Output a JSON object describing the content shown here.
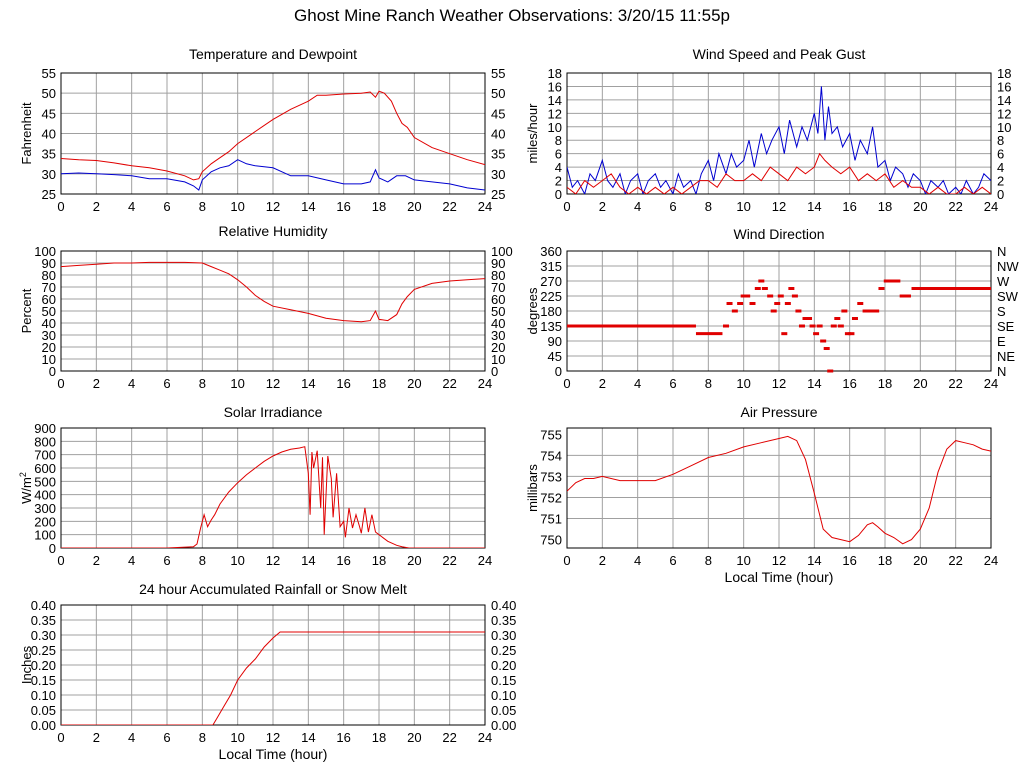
{
  "page_title": "Ghost Mine Ranch Weather Observations: 3/20/15 11:55p",
  "colors": {
    "red": "#e00000",
    "blue": "#0000d0",
    "grid": "#a0a0a0",
    "axis": "#000000"
  },
  "chart_data": [
    {
      "id": "temp",
      "type": "line",
      "title": "Temperature and Dewpoint",
      "ylabel": "Fahrenheit",
      "xlabel": "",
      "xlim": [
        0,
        24
      ],
      "ylim": [
        25,
        55
      ],
      "xticks": [
        0,
        2,
        4,
        6,
        8,
        10,
        12,
        14,
        16,
        18,
        20,
        22,
        24
      ],
      "yticks": [
        25,
        30,
        35,
        40,
        45,
        50,
        55
      ],
      "yticks_right": [
        "25",
        "30",
        "35",
        "40",
        "45",
        "50",
        "55"
      ],
      "series": [
        {
          "name": "Temperature",
          "color": "red",
          "x": [
            0,
            1,
            2,
            3,
            4,
            5,
            6,
            7,
            7.5,
            7.8,
            8,
            8.5,
            9,
            9.5,
            10,
            11,
            12,
            13,
            14,
            14.5,
            15,
            16,
            17,
            17.5,
            17.8,
            18,
            18.3,
            18.7,
            19,
            19.3,
            19.6,
            20,
            21,
            22,
            23,
            24
          ],
          "y": [
            33.8,
            33.5,
            33.3,
            32.7,
            32,
            31.5,
            30.7,
            29.5,
            28.5,
            28.8,
            30.5,
            32.5,
            34,
            35.5,
            37.5,
            40.5,
            43.5,
            46,
            48,
            49.5,
            49.5,
            49.8,
            50,
            50.3,
            49,
            50.5,
            50,
            48,
            45,
            42.5,
            41.5,
            39,
            36.5,
            35,
            33.5,
            32.3
          ]
        },
        {
          "name": "Dewpoint",
          "color": "blue",
          "x": [
            0,
            1,
            2,
            3,
            4,
            5,
            6,
            7,
            7.5,
            7.8,
            8,
            8.5,
            9,
            9.5,
            10,
            10.5,
            11,
            12,
            13,
            14,
            15,
            16,
            17,
            17.5,
            17.8,
            18,
            18.5,
            19,
            19.5,
            20,
            21,
            22,
            23,
            24
          ],
          "y": [
            30,
            30.2,
            30,
            29.8,
            29.5,
            28.8,
            28.8,
            28,
            27,
            26,
            28.5,
            30.5,
            31.5,
            32,
            33.5,
            32.5,
            32,
            31.5,
            29.5,
            29.5,
            28.5,
            27.5,
            27.5,
            28,
            31,
            29,
            28,
            29.5,
            29.5,
            28.5,
            28,
            27.5,
            26.5,
            26
          ]
        }
      ]
    },
    {
      "id": "wind",
      "type": "line",
      "title": "Wind Speed and Peak Gust",
      "ylabel": "miles/hour",
      "xlabel": "",
      "xlim": [
        0,
        24
      ],
      "ylim": [
        0,
        18
      ],
      "xticks": [
        0,
        2,
        4,
        6,
        8,
        10,
        12,
        14,
        16,
        18,
        20,
        22,
        24
      ],
      "yticks": [
        0,
        2,
        4,
        6,
        8,
        10,
        12,
        14,
        16,
        18
      ],
      "yticks_right": [
        "0",
        "2",
        "4",
        "6",
        "8",
        "10",
        "12",
        "14",
        "16",
        "18"
      ],
      "series": [
        {
          "name": "Peak Gust",
          "color": "blue",
          "x": [
            0,
            0.3,
            0.6,
            1,
            1.3,
            1.6,
            2,
            2.3,
            2.6,
            3,
            3.3,
            3.6,
            4,
            4.3,
            4.6,
            5,
            5.3,
            5.6,
            6,
            6.3,
            6.6,
            7,
            7.3,
            7.6,
            8,
            8.3,
            8.6,
            9,
            9.3,
            9.6,
            10,
            10.3,
            10.6,
            11,
            11.3,
            11.6,
            12,
            12.3,
            12.6,
            13,
            13.3,
            13.6,
            14,
            14.2,
            14.4,
            14.6,
            14.8,
            15,
            15.3,
            15.6,
            16,
            16.3,
            16.6,
            17,
            17.3,
            17.6,
            18,
            18.3,
            18.6,
            19,
            19.3,
            19.6,
            20,
            20.3,
            20.6,
            21,
            21.3,
            21.6,
            22,
            22.3,
            22.6,
            23,
            23.3,
            23.6,
            24
          ],
          "y": [
            4,
            1,
            2,
            0,
            3,
            2,
            5,
            2,
            1,
            3,
            0,
            2,
            3,
            0,
            2,
            3,
            1,
            2,
            0,
            3,
            1,
            2,
            0,
            3,
            5,
            2,
            6,
            3,
            6,
            4,
            5,
            8,
            4,
            9,
            6,
            8,
            10,
            6,
            11,
            7,
            10,
            8,
            12,
            9,
            16,
            8,
            13,
            9,
            10,
            7,
            9,
            5,
            8,
            6,
            10,
            4,
            5,
            2,
            4,
            3,
            1,
            3,
            2,
            0,
            2,
            1,
            2,
            0,
            1,
            0,
            2,
            0,
            1,
            3,
            2
          ]
        },
        {
          "name": "Wind Speed",
          "color": "red",
          "x": [
            0,
            0.5,
            1,
            1.5,
            2,
            2.5,
            3,
            3.5,
            4,
            4.5,
            5,
            5.5,
            6,
            6.5,
            7,
            7.5,
            8,
            8.5,
            9,
            9.5,
            10,
            10.5,
            11,
            11.5,
            12,
            12.5,
            13,
            13.5,
            14,
            14.3,
            14.6,
            15,
            15.5,
            16,
            16.5,
            17,
            17.5,
            18,
            18.5,
            19,
            19.5,
            20,
            20.5,
            21,
            21.5,
            22,
            22.5,
            23,
            23.5,
            24
          ],
          "y": [
            1,
            0,
            2,
            1,
            2,
            3,
            1,
            0,
            1,
            0,
            1,
            0,
            1,
            0,
            1,
            2,
            2,
            1,
            3,
            2,
            2,
            3,
            2,
            4,
            3,
            2,
            4,
            3,
            4,
            6,
            5,
            4,
            3,
            4,
            2,
            3,
            2,
            3,
            1,
            2,
            1,
            1,
            0,
            1,
            0,
            0,
            1,
            0,
            1,
            0
          ]
        }
      ]
    },
    {
      "id": "humidity",
      "type": "line",
      "title": "Relative Humidity",
      "ylabel": "Percent",
      "xlabel": "",
      "xlim": [
        0,
        24
      ],
      "ylim": [
        0,
        100
      ],
      "xticks": [
        0,
        2,
        4,
        6,
        8,
        10,
        12,
        14,
        16,
        18,
        20,
        22,
        24
      ],
      "yticks": [
        0,
        10,
        20,
        30,
        40,
        50,
        60,
        70,
        80,
        90,
        100
      ],
      "yticks_right": [
        "0",
        "10",
        "20",
        "30",
        "40",
        "50",
        "60",
        "70",
        "80",
        "90",
        "100"
      ],
      "series": [
        {
          "name": "Relative Humidity",
          "color": "red",
          "x": [
            0,
            1,
            2,
            3,
            4,
            5,
            6,
            7,
            8,
            8.5,
            9,
            9.5,
            10,
            10.5,
            11,
            11.5,
            12,
            13,
            14,
            15,
            16,
            17,
            17.5,
            17.8,
            18,
            18.5,
            19,
            19.3,
            19.6,
            20,
            21,
            22,
            23,
            24
          ],
          "y": [
            87,
            88,
            89,
            90,
            90,
            90.5,
            90.5,
            90.5,
            90,
            87,
            84,
            81,
            76,
            70,
            63,
            58,
            54,
            51,
            48,
            44,
            42,
            41,
            42,
            50,
            43,
            42,
            47,
            56,
            62,
            68,
            73,
            75,
            76,
            77
          ]
        }
      ]
    },
    {
      "id": "direction",
      "type": "scatter",
      "title": "Wind Direction",
      "ylabel": "degrees",
      "xlabel": "",
      "xlim": [
        0,
        24
      ],
      "ylim": [
        0,
        360
      ],
      "xticks": [
        0,
        2,
        4,
        6,
        8,
        10,
        12,
        14,
        16,
        18,
        20,
        22,
        24
      ],
      "yticks": [
        0,
        45,
        90,
        135,
        180,
        225,
        270,
        315,
        360
      ],
      "yticks_right": [
        "N",
        "NE",
        "E",
        "SE",
        "S",
        "SW",
        "W",
        "NW",
        "N"
      ],
      "segments": [
        {
          "x0": 0,
          "x1": 7.3,
          "y": 135
        },
        {
          "x0": 7.3,
          "x1": 8.8,
          "y": 112
        },
        {
          "x0": 19.5,
          "x1": 24,
          "y": 247.5
        }
      ],
      "points": {
        "x": [
          9,
          9.2,
          9.5,
          9.8,
          10,
          10.2,
          10.5,
          10.8,
          11,
          11.2,
          11.5,
          11.7,
          11.9,
          12.1,
          12.3,
          12.5,
          12.7,
          12.9,
          13.1,
          13.3,
          13.5,
          13.7,
          13.9,
          14.1,
          14.3,
          14.5,
          14.7,
          14.9,
          15.1,
          15.3,
          15.5,
          15.7,
          15.9,
          16.1,
          16.3,
          16.6,
          16.9,
          17.2,
          17.5,
          17.8,
          18.1,
          18.4,
          18.7,
          19,
          19.3
        ],
        "y": [
          135,
          202.5,
          180,
          202.5,
          225,
          225,
          202.5,
          247.5,
          270,
          247.5,
          225,
          180,
          202.5,
          225,
          112,
          202.5,
          247.5,
          225,
          180,
          135,
          157.5,
          157.5,
          135,
          112,
          135,
          90,
          67.5,
          0,
          135,
          157.5,
          135,
          180,
          112,
          112,
          157.5,
          202.5,
          180,
          180,
          180,
          247.5,
          270,
          270,
          270,
          225,
          225
        ]
      }
    },
    {
      "id": "solar",
      "type": "line",
      "title": "Solar Irradiance",
      "ylabel": "W/m",
      "ylabel_sup": "2",
      "xlabel": "",
      "xlim": [
        0,
        24
      ],
      "ylim": [
        0,
        900
      ],
      "xticks": [
        0,
        2,
        4,
        6,
        8,
        10,
        12,
        14,
        16,
        18,
        20,
        22,
        24
      ],
      "yticks": [
        0,
        100,
        200,
        300,
        400,
        500,
        600,
        700,
        800,
        900
      ],
      "yticks_right": [],
      "series": [
        {
          "name": "Solar Irradiance",
          "color": "red",
          "x": [
            0,
            6,
            7.5,
            7.7,
            7.9,
            8.1,
            8.3,
            8.5,
            8.7,
            9,
            9.5,
            10,
            10.5,
            11,
            11.5,
            12,
            12.5,
            13,
            13.5,
            13.8,
            14,
            14.1,
            14.2,
            14.3,
            14.5,
            14.7,
            14.8,
            14.9,
            15.1,
            15.3,
            15.4,
            15.6,
            15.8,
            16,
            16.1,
            16.3,
            16.5,
            16.7,
            16.9,
            17,
            17.2,
            17.4,
            17.6,
            17.8,
            18,
            18.2,
            18.5,
            19,
            19.3,
            19.7,
            20,
            24
          ],
          "y": [
            0,
            0,
            10,
            30,
            150,
            250,
            160,
            210,
            250,
            330,
            420,
            490,
            550,
            600,
            650,
            690,
            720,
            740,
            750,
            760,
            560,
            250,
            720,
            600,
            730,
            300,
            680,
            100,
            690,
            520,
            230,
            560,
            160,
            200,
            80,
            300,
            150,
            250,
            160,
            110,
            300,
            120,
            250,
            120,
            100,
            80,
            50,
            20,
            10,
            0,
            0,
            0
          ]
        }
      ]
    },
    {
      "id": "pressure",
      "type": "line",
      "title": "Air Pressure",
      "ylabel": "millibars",
      "xlabel": "Local Time (hour)",
      "xlim": [
        0,
        24
      ],
      "ylim": [
        749.6,
        755.3
      ],
      "xticks": [
        0,
        2,
        4,
        6,
        8,
        10,
        12,
        14,
        16,
        18,
        20,
        22,
        24
      ],
      "yticks": [
        750,
        751,
        752,
        753,
        754,
        755
      ],
      "yticks_right": [],
      "series": [
        {
          "name": "Air Pressure",
          "color": "red",
          "x": [
            0,
            0.5,
            1,
            1.5,
            2,
            3,
            4,
            5,
            6,
            7,
            8,
            9,
            10,
            11,
            12,
            12.5,
            13,
            13.5,
            14,
            14.5,
            15,
            16,
            16.5,
            17,
            17.3,
            17.6,
            18,
            18.5,
            19,
            19.5,
            20,
            20.5,
            21,
            21.5,
            22,
            22.5,
            23,
            23.5,
            24
          ],
          "y": [
            752.3,
            752.7,
            752.9,
            752.9,
            753,
            752.8,
            752.8,
            752.8,
            753.1,
            753.5,
            753.9,
            754.1,
            754.4,
            754.6,
            754.8,
            754.9,
            754.7,
            753.8,
            752.2,
            750.5,
            750.1,
            749.9,
            750.2,
            750.7,
            750.8,
            750.6,
            750.3,
            750.1,
            749.8,
            750,
            750.5,
            751.5,
            753.2,
            754.3,
            754.7,
            754.6,
            754.5,
            754.3,
            754.2
          ]
        }
      ]
    },
    {
      "id": "rain",
      "type": "line",
      "title": "24 hour Accumulated Rainfall or Snow Melt",
      "ylabel": "Inches",
      "xlabel": "Local Time (hour)",
      "xlim": [
        0,
        24
      ],
      "ylim": [
        0,
        0.4
      ],
      "xticks": [
        0,
        2,
        4,
        6,
        8,
        10,
        12,
        14,
        16,
        18,
        20,
        22,
        24
      ],
      "yticks": [
        "0.00",
        "0.05",
        "0.10",
        "0.15",
        "0.20",
        "0.25",
        "0.30",
        "0.35",
        "0.40"
      ],
      "yticks_right": [
        "0.00",
        "0.05",
        "0.10",
        "0.15",
        "0.20",
        "0.25",
        "0.30",
        "0.35",
        "0.40"
      ],
      "series": [
        {
          "name": "Accumulated Rainfall",
          "color": "red",
          "x": [
            0,
            8.6,
            8.8,
            9.2,
            9.6,
            10,
            10.5,
            11,
            11.5,
            12,
            12.4,
            12.5,
            24
          ],
          "y": [
            0,
            0,
            0.02,
            0.06,
            0.1,
            0.15,
            0.19,
            0.22,
            0.26,
            0.29,
            0.31,
            0.31,
            0.31
          ]
        }
      ]
    }
  ]
}
